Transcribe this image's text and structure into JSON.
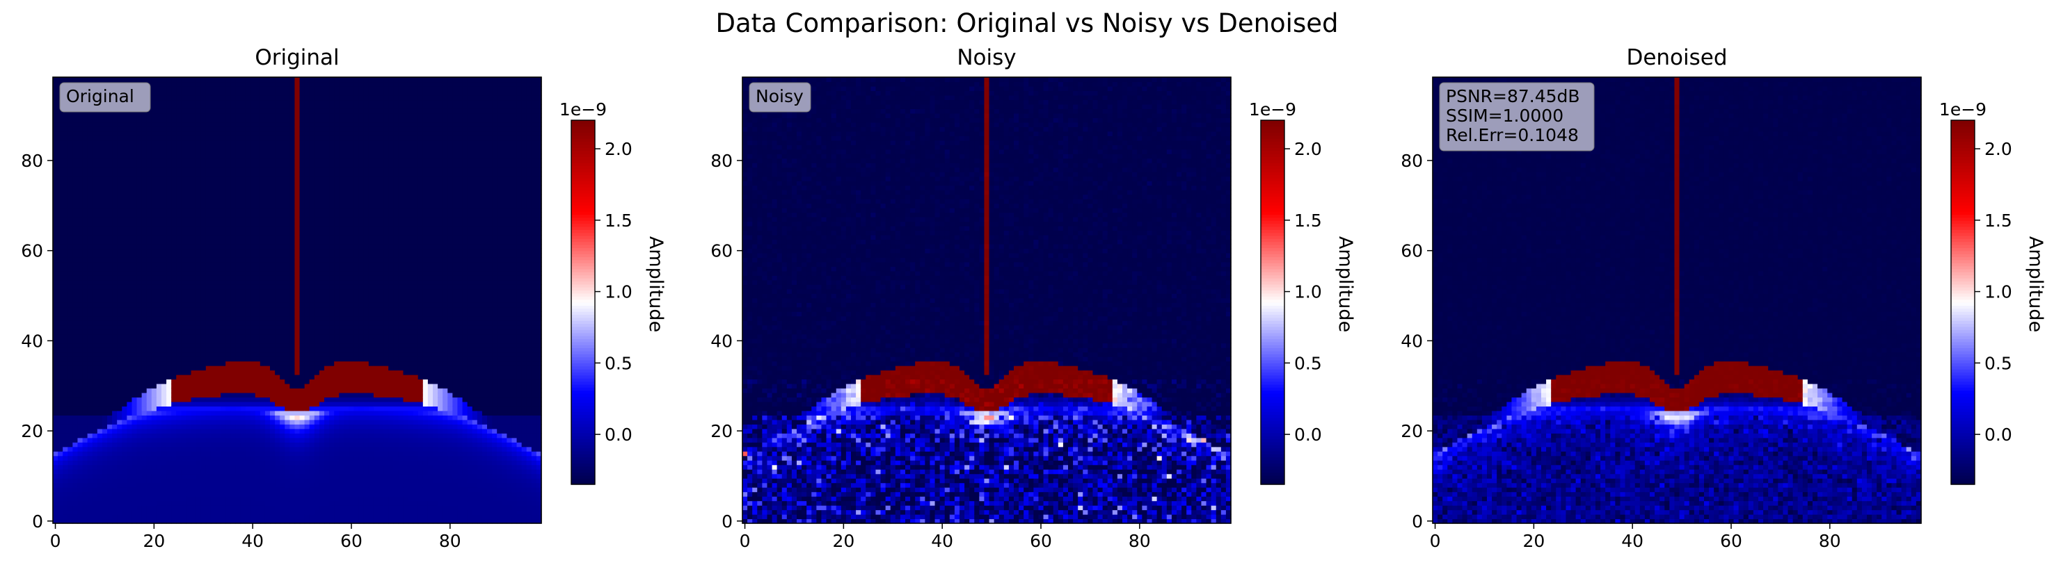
{
  "figure": {
    "title": "Data Comparison: Original vs Noisy vs Denoised"
  },
  "chart_data": [
    {
      "type": "heatmap",
      "title": "Original",
      "annotation": [
        "Original"
      ],
      "xlim": [
        0,
        99
      ],
      "ylim": [
        0,
        99
      ],
      "xticks": [
        "0",
        "20",
        "40",
        "60",
        "80"
      ],
      "yticks": [
        "0",
        "20",
        "40",
        "60",
        "80"
      ],
      "colorbar": {
        "label": "Amplitude",
        "exponent": "1e−9",
        "range": [
          -0.35,
          2.2
        ],
        "ticks": [
          "0.0",
          "0.5",
          "1.0",
          "1.5",
          "2.0"
        ],
        "colormap": "seismic"
      },
      "noise": 0
    },
    {
      "type": "heatmap",
      "title": "Noisy",
      "annotation": [
        "Noisy"
      ],
      "xlim": [
        0,
        99
      ],
      "ylim": [
        0,
        99
      ],
      "xticks": [
        "0",
        "20",
        "40",
        "60",
        "80"
      ],
      "yticks": [
        "0",
        "20",
        "40",
        "60",
        "80"
      ],
      "colorbar": {
        "label": "Amplitude",
        "exponent": "1e−9",
        "range": [
          -0.35,
          2.2
        ],
        "ticks": [
          "0.0",
          "0.5",
          "1.0",
          "1.5",
          "2.0"
        ],
        "colormap": "seismic"
      },
      "noise": 0.3
    },
    {
      "type": "heatmap",
      "title": "Denoised",
      "annotation": [
        "PSNR=87.45dB",
        "SSIM=1.0000",
        "Rel.Err=0.1048"
      ],
      "xlim": [
        0,
        99
      ],
      "ylim": [
        0,
        99
      ],
      "xticks": [
        "0",
        "20",
        "40",
        "60",
        "80"
      ],
      "yticks": [
        "0",
        "20",
        "40",
        "60",
        "80"
      ],
      "colorbar": {
        "label": "Amplitude",
        "exponent": "1e−9",
        "range": [
          -0.35,
          2.2
        ],
        "ticks": [
          "0.0",
          "0.5",
          "1.0",
          "1.5",
          "2.0"
        ],
        "colormap": "seismic"
      },
      "noise": 0.13
    }
  ]
}
